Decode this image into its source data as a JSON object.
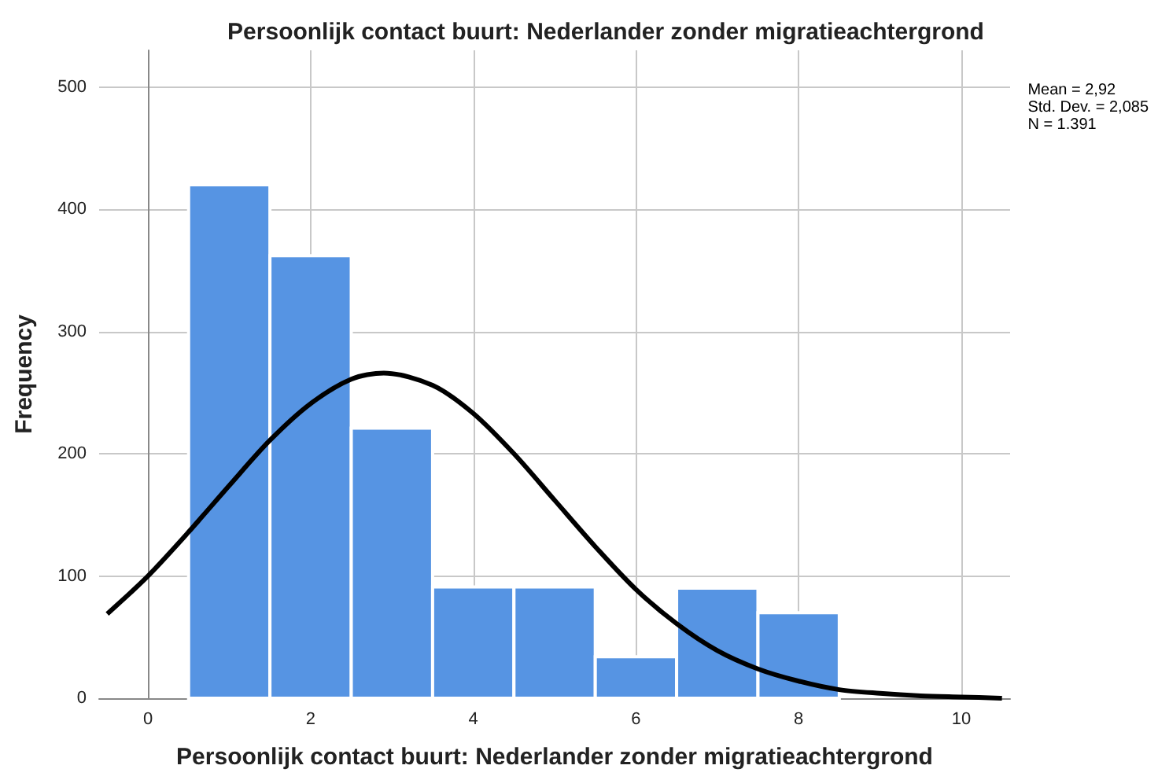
{
  "chart_data": {
    "type": "histogram",
    "title": "Persoonlijk contact buurt: Nederlander zonder migratieachtergrond",
    "xlabel": "Persoonlijk contact buurt: Nederlander zonder migratieachtergrond",
    "ylabel": "Frequency",
    "bins": [
      0.5,
      1.5,
      2.5,
      3.5,
      4.5,
      5.5,
      6.5,
      7.5,
      8.5
    ],
    "values": [
      420,
      362,
      221,
      91,
      91,
      34,
      90,
      70
    ],
    "color": "#5694e3",
    "series": [
      {
        "type": "line",
        "color": "#000000",
        "marker": "none",
        "x": [
          -0.5,
          0,
          0.5,
          1,
          1.5,
          2,
          2.5,
          2.9,
          3.5,
          4,
          4.5,
          5,
          5.5,
          6,
          6.5,
          7,
          7.5,
          8,
          8.5,
          9,
          9.5,
          10,
          10.5
        ],
        "values": [
          69,
          100,
          136,
          174,
          211,
          241,
          261,
          266,
          256,
          233,
          200,
          162,
          124,
          89,
          61,
          39,
          24,
          14,
          7,
          4,
          2,
          1,
          0
        ]
      }
    ],
    "xlim": [
      -0.6,
      10.6
    ],
    "xticks": [
      0,
      2,
      4,
      6,
      8,
      10
    ],
    "ylim": [
      0,
      530
    ],
    "yticks": [
      0,
      100,
      200,
      300,
      400,
      500
    ],
    "grid": true,
    "annotations": [
      "Mean = 2,92\nStd. Dev. = 2,085\nN = 1.391"
    ]
  }
}
